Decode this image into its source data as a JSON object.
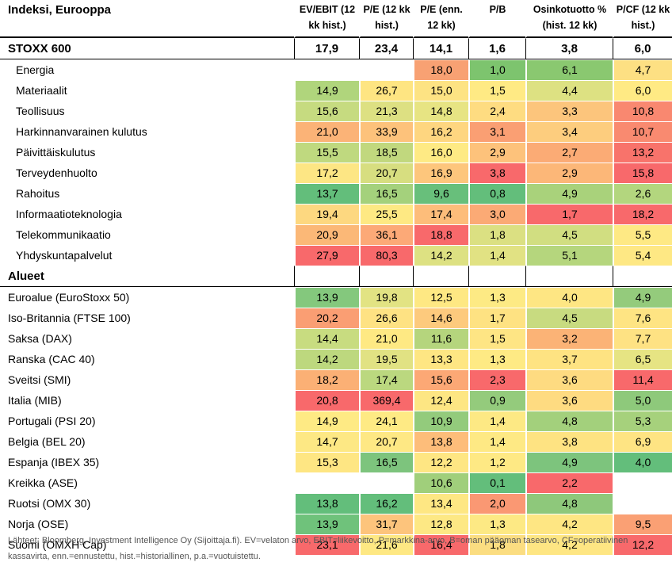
{
  "columns": [
    "Indeksi, Eurooppa",
    "EV/EBIT (12 kk hist.)",
    "P/E (12 kk hist.)",
    "P/E (enn. 12 kk)",
    "P/B",
    "Osinkotuotto % (hist. 12 kk)",
    "P/CF (12 kk hist.)"
  ],
  "stoxx": {
    "label": "STOXX 600",
    "values": [
      "17,9",
      "23,4",
      "14,1",
      "1,6",
      "3,8",
      "6,0"
    ]
  },
  "sectors": [
    {
      "label": "Energia",
      "values": [
        "",
        "",
        "18,0",
        "1,0",
        "6,1",
        "4,7"
      ],
      "colors": [
        "#ffffff",
        "#ffffff",
        "#f8a173",
        "#7dc46e",
        "#8ac870",
        "#fde083"
      ]
    },
    {
      "label": "Materiaalit",
      "values": [
        "14,9",
        "26,7",
        "15,0",
        "1,5",
        "4,4",
        "6,0"
      ],
      "colors": [
        "#b0d57c",
        "#fee582",
        "#fde383",
        "#ffea84",
        "#dde182",
        "#ffea84"
      ]
    },
    {
      "label": "Teollisuus",
      "values": [
        "15,6",
        "21,3",
        "14,8",
        "2,4",
        "3,3",
        "10,8"
      ],
      "colors": [
        "#c6db80",
        "#dde082",
        "#e7e483",
        "#fedc81",
        "#fcc57c",
        "#f98870"
      ]
    },
    {
      "label": "Harkinnanvarainen kulutus",
      "values": [
        "21,0",
        "33,9",
        "16,2",
        "3,1",
        "3,4",
        "10,7"
      ],
      "colors": [
        "#fbb377",
        "#fdc27b",
        "#fed680",
        "#fa9f73",
        "#fdcd7e",
        "#f98a70"
      ]
    },
    {
      "label": "Päivittäiskulutus",
      "values": [
        "15,5",
        "18,5",
        "16,0",
        "2,9",
        "2,7",
        "13,2"
      ],
      "colors": [
        "#bfd97f",
        "#c1d87e",
        "#feea84",
        "#fdc27b",
        "#fbab75",
        "#f8736b"
      ]
    },
    {
      "label": "Terveydenhuolto",
      "values": [
        "17,2",
        "20,7",
        "16,9",
        "3,8",
        "2,9",
        "15,8"
      ],
      "colors": [
        "#fde684",
        "#d7de80",
        "#fdc67c",
        "#f8696b",
        "#fcb778",
        "#f8696b"
      ]
    },
    {
      "label": "Rahoitus",
      "values": [
        "13,7",
        "16,5",
        "9,6",
        "0,8",
        "4,9",
        "2,6"
      ],
      "colors": [
        "#63be7b",
        "#a4d17c",
        "#68bf7b",
        "#63be7b",
        "#a9d27b",
        "#b3d67e"
      ]
    },
    {
      "label": "Informaatioteknologia",
      "values": [
        "19,4",
        "25,5",
        "17,4",
        "3,0",
        "1,7",
        "18,2"
      ],
      "colors": [
        "#fdd880",
        "#fee983",
        "#fdbd7a",
        "#fbaa75",
        "#f8696b",
        "#f8696b"
      ]
    },
    {
      "label": "Telekommunikaatio",
      "values": [
        "20,9",
        "36,1",
        "18,8",
        "1,8",
        "4,5",
        "5,5"
      ],
      "colors": [
        "#fbb877",
        "#fca977",
        "#f8696b",
        "#dbe082",
        "#d1de81",
        "#fee984"
      ]
    },
    {
      "label": "Yhdyskuntapalvelut",
      "values": [
        "27,9",
        "80,3",
        "14,2",
        "1,4",
        "5,1",
        "5,4"
      ],
      "colors": [
        "#f8696b",
        "#f8696b",
        "#dde182",
        "#e1e283",
        "#b5d67d",
        "#fee884"
      ]
    }
  ],
  "alueet_label": "Alueet",
  "regions": [
    {
      "label": "Euroalue (EuroStoxx 50)",
      "values": [
        "13,9",
        "19,8",
        "12,5",
        "1,3",
        "4,0",
        "4,9"
      ],
      "colors": [
        "#84c87d",
        "#e2e383",
        "#fee883",
        "#fdea84",
        "#fee683",
        "#94cb7c"
      ]
    },
    {
      "label": "Iso-Britannia (FTSE 100)",
      "values": [
        "20,2",
        "26,6",
        "14,6",
        "1,7",
        "4,5",
        "7,6"
      ],
      "colors": [
        "#fa9e73",
        "#fee283",
        "#fdca7d",
        "#fee282",
        "#c8db80",
        "#fee483"
      ]
    },
    {
      "label": "Saksa (DAX)",
      "values": [
        "14,4",
        "21,0",
        "11,6",
        "1,5",
        "3,2",
        "7,7"
      ],
      "colors": [
        "#c8dc80",
        "#fee983",
        "#b5d57d",
        "#fee584",
        "#fbb376",
        "#fee283"
      ]
    },
    {
      "label": "Ranska (CAC 40)",
      "values": [
        "14,2",
        "19,5",
        "13,3",
        "1,3",
        "3,7",
        "6,5"
      ],
      "colors": [
        "#bdd87e",
        "#e1e283",
        "#fee683",
        "#feea84",
        "#fee382",
        "#e6e483"
      ]
    },
    {
      "label": "Sveitsi (SMI)",
      "values": [
        "18,2",
        "17,4",
        "15,6",
        "2,3",
        "3,6",
        "11,4"
      ],
      "colors": [
        "#fbb075",
        "#bbd87f",
        "#fca875",
        "#f8696b",
        "#fedb81",
        "#f8696b"
      ]
    },
    {
      "label": "Italia (MIB)",
      "values": [
        "20,8",
        "369,4",
        "12,4",
        "0,9",
        "3,6",
        "5,0"
      ],
      "colors": [
        "#f8696b",
        "#f8696b",
        "#fde683",
        "#94cb7c",
        "#fedb81",
        "#8ec97b"
      ]
    },
    {
      "label": "Portugali (PSI 20)",
      "values": [
        "14,9",
        "24,1",
        "10,9",
        "1,4",
        "4,8",
        "5,3"
      ],
      "colors": [
        "#feea84",
        "#feea84",
        "#93cb7c",
        "#fde984",
        "#a3d07c",
        "#a6d17c"
      ]
    },
    {
      "label": "Belgia (BEL 20)",
      "values": [
        "14,7",
        "20,7",
        "13,8",
        "1,4",
        "3,8",
        "6,9"
      ],
      "colors": [
        "#fde884",
        "#fee884",
        "#fdbd7a",
        "#fee984",
        "#fee382",
        "#fee483"
      ]
    },
    {
      "label": "Espanja (IBEX 35)",
      "values": [
        "15,3",
        "16,5",
        "12,2",
        "1,2",
        "4,9",
        "4,0"
      ],
      "colors": [
        "#fee683",
        "#7dc47d",
        "#fee683",
        "#fee984",
        "#7dc47d",
        "#63be7b"
      ]
    },
    {
      "label": "Kreikka (ASE)",
      "values": [
        "",
        "",
        "10,6",
        "0,1",
        "2,2",
        ""
      ],
      "colors": [
        "#ffffff",
        "#ffffff",
        "#a0cf7b",
        "#63be7b",
        "#f8696b",
        "#ffffff"
      ]
    },
    {
      "label": "Ruotsi (OMX 30)",
      "values": [
        "13,8",
        "16,2",
        "13,4",
        "2,0",
        "4,8",
        ""
      ],
      "colors": [
        "#63be7b",
        "#63be7b",
        "#fee783",
        "#fa9873",
        "#8ec87b",
        "#ffffff"
      ]
    },
    {
      "label": "Norja (OSE)",
      "values": [
        "13,9",
        "31,7",
        "12,8",
        "1,3",
        "4,2",
        "9,5"
      ],
      "colors": [
        "#6fc27b",
        "#fdc47c",
        "#fde884",
        "#fde984",
        "#fee683",
        "#faa074"
      ]
    },
    {
      "label": "Suomi (OMXH Cap)",
      "values": [
        "23,1",
        "21,6",
        "16,4",
        "1,8",
        "4,2",
        "12,2"
      ],
      "colors": [
        "#f8696b",
        "#fee883",
        "#f8696b",
        "#fbdd81",
        "#fee683",
        "#f8696b"
      ]
    }
  ],
  "footnote": "Lähteet: Bloomberg, Investment Intelligence Oy (Sijoittaja.fi). EV=velaton arvo, EBIT=liikevoitto, P=markkina-arvo, B=oman pääoman tasearvo, CF=operatiivinen kassavirta, enn.=ennustettu, hist.=historiallinen, p.a.=vuotuistettu."
}
